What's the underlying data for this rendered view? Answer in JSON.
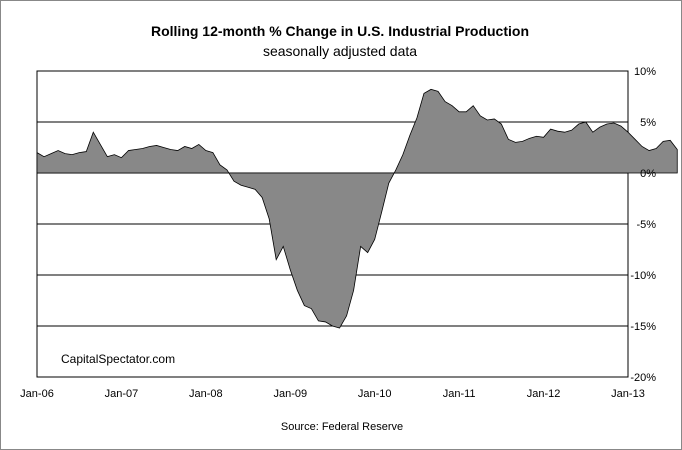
{
  "chart_data": {
    "type": "area",
    "title": "Rolling 12-month %  Change in U.S. Industrial Production",
    "subtitle": "seasonally adjusted data",
    "watermark": "CapitalSpectator.com",
    "source": "Source: Federal Reserve",
    "x_tick_labels": [
      "Jan-06",
      "Jan-07",
      "Jan-08",
      "Jan-09",
      "Jan-10",
      "Jan-11",
      "Jan-12",
      "Jan-13"
    ],
    "y_tick_labels": [
      "10%",
      "5%",
      "0%",
      "-5%",
      "-10%",
      "-15%",
      "-20%"
    ],
    "y_ticks": [
      10,
      5,
      0,
      -5,
      -10,
      -15,
      -20
    ],
    "ylim": [
      -20,
      10
    ],
    "x_range": [
      "Jan-06",
      "Jan-13"
    ],
    "grid": "horizontal",
    "colors": {
      "fill": "#888888",
      "stroke": "#000000",
      "plot_bg": "#ffffff"
    },
    "series": [
      {
        "x_start": "Jan-06",
        "frequency": "monthly",
        "values": [
          2.0,
          1.6,
          1.9,
          2.2,
          1.9,
          1.8,
          2.0,
          2.1,
          4.0,
          2.8,
          1.6,
          1.8,
          1.5,
          2.2,
          2.3,
          2.4,
          2.6,
          2.7,
          2.5,
          2.3,
          2.2,
          2.6,
          2.4,
          2.8,
          2.2,
          2.0,
          0.8,
          0.3,
          -0.8,
          -1.2,
          -1.4,
          -1.6,
          -2.4,
          -4.5,
          -8.5,
          -7.2,
          -9.5,
          -11.5,
          -13.0,
          -13.3,
          -14.5,
          -14.6,
          -15.0,
          -15.2,
          -14.0,
          -11.5,
          -7.2,
          -7.8,
          -6.5,
          -3.8,
          -1.0,
          0.3,
          1.8,
          3.7,
          5.4,
          7.8,
          8.2,
          8.0,
          7.0,
          6.6,
          6.0,
          6.0,
          6.6,
          5.6,
          5.2,
          5.3,
          4.8,
          3.3,
          3.0,
          3.1,
          3.4,
          3.6,
          3.5,
          4.3,
          4.1,
          4.0,
          4.2,
          4.8,
          5.0,
          4.0,
          4.5,
          4.8,
          4.9,
          4.6,
          4.0,
          3.3,
          2.6,
          2.2,
          2.4,
          3.1,
          3.2,
          2.3
        ]
      }
    ]
  }
}
